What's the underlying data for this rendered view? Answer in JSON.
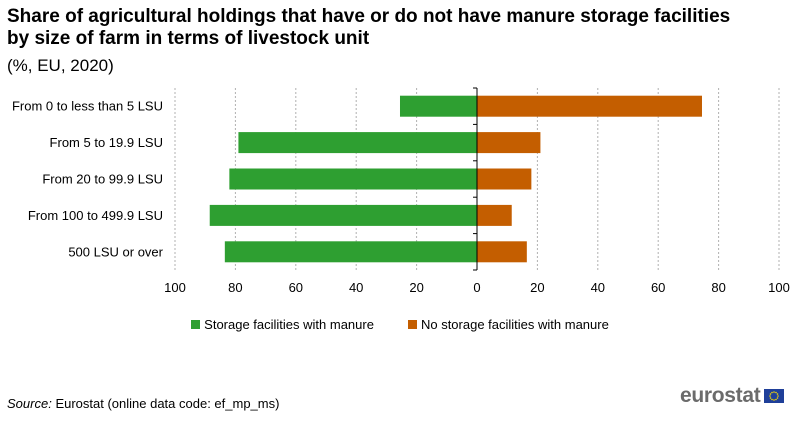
{
  "title": "Share of agricultural holdings that have or do not have manure storage facilities by size of farm in terms of livestock unit",
  "subtitle": "(%, EU, 2020)",
  "source_label": "Source:",
  "source_text": "Eurostat (online data code: ef_mp_ms)",
  "logo_text": "eurostat",
  "colors": {
    "with": "#2e9f31",
    "without": "#c45e00",
    "grid": "#b0b0b0",
    "axis": "#000000"
  },
  "chart_data": {
    "type": "bar",
    "orientation": "horizontal-diverging",
    "title": "Share of agricultural holdings that have or do not have manure storage facilities by size of farm in terms of livestock unit",
    "subtitle": "(%, EU, 2020)",
    "xlabel": "",
    "ylabel": "",
    "xlim": [
      -100,
      100
    ],
    "x_ticks": [
      -100,
      -80,
      -60,
      -40,
      -20,
      0,
      20,
      40,
      60,
      80,
      100
    ],
    "x_tick_labels": [
      "100",
      "80",
      "60",
      "40",
      "20",
      "0",
      "20",
      "40",
      "60",
      "80",
      "100"
    ],
    "grid": true,
    "legend_position": "bottom",
    "categories": [
      "From 0 to less than 5 LSU",
      "From 5 to 19.9 LSU",
      "From 20 to 99.9 LSU",
      "From 100 to 499.9 LSU",
      "500 LSU or over"
    ],
    "series": [
      {
        "name": "Storage facilities with manure",
        "side": "left",
        "values": [
          25.5,
          79,
          82,
          88.5,
          83.5
        ]
      },
      {
        "name": "No storage facilities with manure",
        "side": "right",
        "values": [
          74.5,
          21,
          18,
          11.5,
          16.5
        ]
      }
    ]
  }
}
